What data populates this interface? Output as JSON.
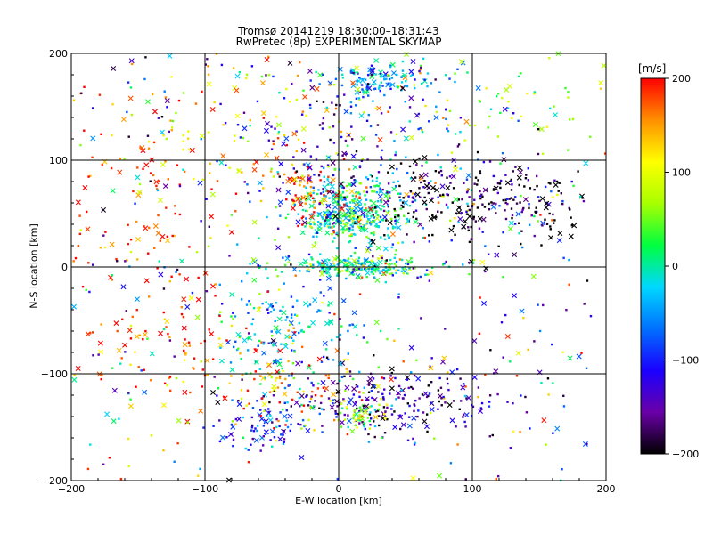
{
  "chart_data": {
    "type": "scatter",
    "title": "Tromsø 20141219 18:30:00–18:31:43",
    "subtitle": "RwPretec (8p) EXPERIMENTAL SKYMAP",
    "xlabel": "E-W location [km]",
    "ylabel": "N-S location [km]",
    "xlim": [
      -200,
      200
    ],
    "ylim": [
      -200,
      200
    ],
    "x_ticks": [
      -200,
      -100,
      0,
      100,
      200
    ],
    "y_ticks": [
      -200,
      -100,
      0,
      100,
      200
    ],
    "x_tick_labels": [
      "−200",
      "−100",
      "0",
      "100",
      "200"
    ],
    "y_tick_labels": [
      "−200",
      "−100",
      "0",
      "100",
      "200"
    ],
    "grid": true,
    "colorbar": {
      "unit": "[m/s]",
      "range": [
        -200,
        200
      ],
      "ticks": [
        200,
        100,
        0,
        -100,
        -200
      ],
      "tick_labels": [
        "200",
        "100",
        "0",
        "−100",
        "−200"
      ],
      "colormap": [
        "#000000",
        "#6a00a8",
        "#1a00ff",
        "#0070ff",
        "#00d8ff",
        "#00ff40",
        "#a8ff00",
        "#ffff00",
        "#ff9000",
        "#ff0000"
      ]
    },
    "marker_types": [
      "small dot",
      "cross"
    ],
    "clusters": [
      {
        "cx": 10,
        "cy": 52,
        "sx": 22,
        "sy": 18,
        "n": 420,
        "v": 0
      },
      {
        "cx": 85,
        "cy": 62,
        "sx": 35,
        "sy": 18,
        "n": 220,
        "v": -190
      },
      {
        "cx": -30,
        "cy": 72,
        "sx": 18,
        "sy": 14,
        "n": 90,
        "v": 180
      },
      {
        "cx": 20,
        "cy": 0,
        "sx": 30,
        "sy": 5,
        "n": 240,
        "v": 10
      },
      {
        "cx": 30,
        "cy": 175,
        "sx": 22,
        "sy": 8,
        "n": 120,
        "v": -40
      },
      {
        "cx": 0,
        "cy": 115,
        "sx": 50,
        "sy": 35,
        "n": 180,
        "v": -120
      },
      {
        "cx": -45,
        "cy": -55,
        "sx": 30,
        "sy": 30,
        "n": 170,
        "v": -30
      },
      {
        "cx": 30,
        "cy": -125,
        "sx": 45,
        "sy": 14,
        "n": 240,
        "v": -150
      },
      {
        "cx": -55,
        "cy": -150,
        "sx": 15,
        "sy": 10,
        "n": 70,
        "v": -90
      },
      {
        "cx": 20,
        "cy": -140,
        "sx": 10,
        "sy": 8,
        "n": 50,
        "v": 40
      },
      {
        "cx": -150,
        "cy": 40,
        "sx": 40,
        "sy": 60,
        "n": 130,
        "v": 190
      },
      {
        "cx": -150,
        "cy": -80,
        "sx": 40,
        "sy": 40,
        "n": 90,
        "v": 190
      },
      {
        "cx": 130,
        "cy": -60,
        "sx": 50,
        "sy": 60,
        "n": 60,
        "v": -120
      },
      {
        "cx": -40,
        "cy": -110,
        "sx": 40,
        "sy": 20,
        "n": 110,
        "v": 160
      },
      {
        "cx": -80,
        "cy": 150,
        "sx": 60,
        "sy": 30,
        "n": 90,
        "v": 140
      },
      {
        "cx": 120,
        "cy": 150,
        "sx": 50,
        "sy": 30,
        "n": 70,
        "v": 60
      },
      {
        "cx": 150,
        "cy": 60,
        "sx": 20,
        "sy": 20,
        "n": 80,
        "v": -195
      }
    ],
    "background_points": 260
  }
}
